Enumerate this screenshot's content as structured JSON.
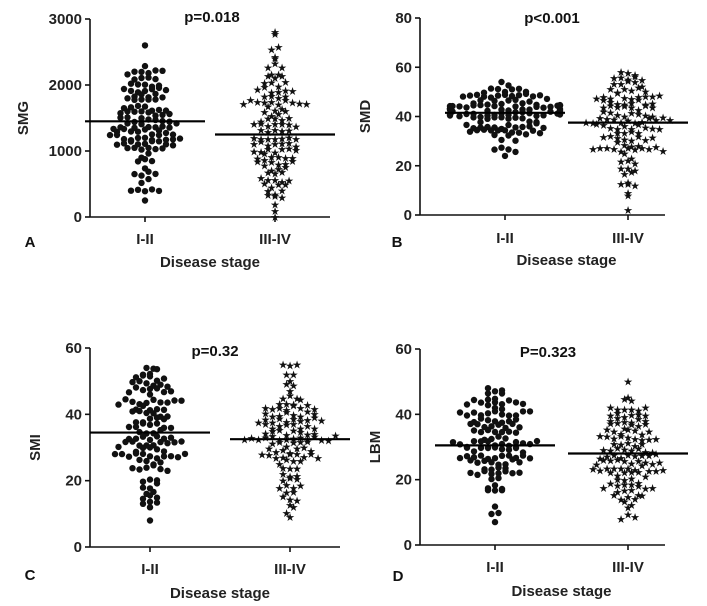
{
  "chart_data": [
    {
      "panel": "A",
      "type": "scatter",
      "style": "dot-plot",
      "ylabel": "SMG",
      "xlabel": "Disease stage",
      "annotation": "p=0.018",
      "categories": [
        "I-II",
        "III-IV"
      ],
      "ylim": [
        0,
        3000
      ],
      "yticks": [
        0,
        1000,
        2000,
        3000
      ],
      "median": [
        1450,
        1250
      ],
      "range": [
        [
          250,
          2600
        ],
        [
          0,
          2800
        ]
      ],
      "markers": [
        "dot",
        "star"
      ]
    },
    {
      "panel": "B",
      "type": "scatter",
      "style": "dot-plot",
      "ylabel": "SMD",
      "xlabel": "Disease stage",
      "annotation": "p<0.001",
      "categories": [
        "I-II",
        "III-IV"
      ],
      "ylim": [
        0,
        80
      ],
      "yticks": [
        0,
        20,
        40,
        60,
        80
      ],
      "median": [
        41.5,
        37.5
      ],
      "range": [
        [
          24,
          54
        ],
        [
          2,
          58
        ]
      ],
      "markers": [
        "dot",
        "star"
      ]
    },
    {
      "panel": "C",
      "type": "scatter",
      "style": "dot-plot",
      "ylabel": "SMI",
      "xlabel": "Disease stage",
      "annotation": "p=0.32",
      "categories": [
        "I-II",
        "III-IV"
      ],
      "ylim": [
        0,
        60
      ],
      "yticks": [
        0,
        20,
        40,
        60
      ],
      "median": [
        34.5,
        32.5
      ],
      "range": [
        [
          8,
          54
        ],
        [
          9,
          55
        ]
      ],
      "markers": [
        "dot",
        "star"
      ]
    },
    {
      "panel": "D",
      "type": "scatter",
      "style": "dot-plot",
      "ylabel": "LBM",
      "xlabel": "Disease stage",
      "annotation": "P=0.323",
      "categories": [
        "I-II",
        "III-IV"
      ],
      "ylim": [
        0,
        60
      ],
      "yticks": [
        0,
        20,
        40,
        60
      ],
      "median": [
        30.5,
        28
      ],
      "range": [
        [
          7,
          48
        ],
        [
          8,
          50
        ]
      ],
      "markers": [
        "dot",
        "star"
      ]
    }
  ]
}
